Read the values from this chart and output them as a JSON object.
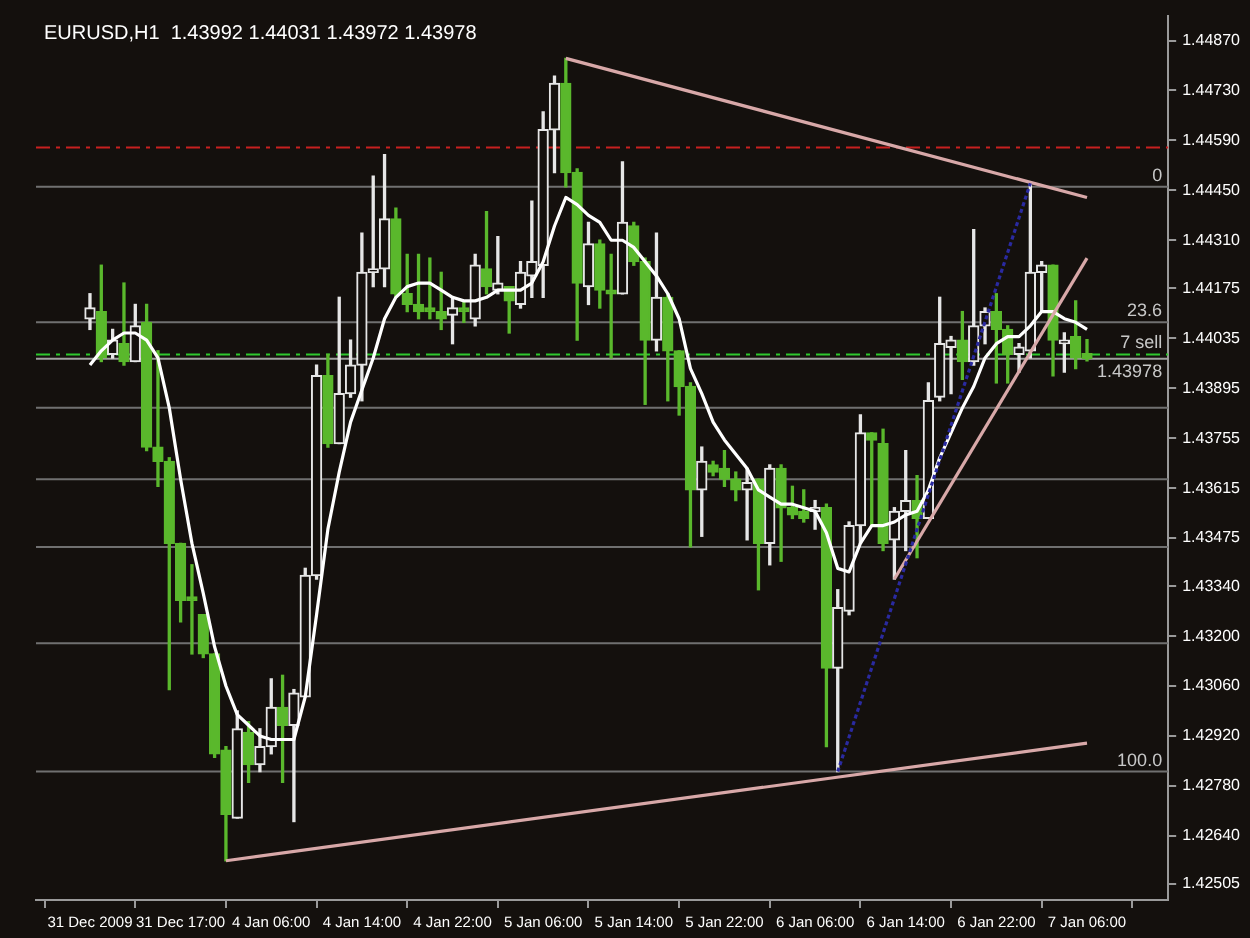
{
  "chart_data": {
    "type": "candlestick",
    "title": "EURUSD,H1  1.43992 1.44031 1.43972 1.43978",
    "categories": [
      "31 Dec 2009",
      null,
      null,
      null,
      null,
      null,
      null,
      null,
      "31 Dec 17:00",
      null,
      null,
      null,
      null,
      null,
      null,
      null,
      "4 Jan 06:00",
      null,
      null,
      null,
      null,
      null,
      null,
      null,
      "4 Jan 14:00",
      null,
      null,
      null,
      null,
      null,
      null,
      null,
      "4 Jan 22:00",
      null,
      null,
      null,
      null,
      null,
      null,
      null,
      "5 Jan 06:00",
      null,
      null,
      null,
      null,
      null,
      null,
      null,
      "5 Jan 14:00",
      null,
      null,
      null,
      null,
      null,
      null,
      null,
      "5 Jan 22:00",
      null,
      null,
      null,
      null,
      null,
      null,
      null,
      "6 Jan 06:00",
      null,
      null,
      null,
      null,
      null,
      null,
      null,
      "6 Jan 14:00",
      null,
      null,
      null,
      null,
      null,
      null,
      null,
      "6 Jan 22:00",
      null,
      null,
      null,
      null,
      null,
      null,
      null,
      "7 Jan 06:00"
    ],
    "ohlc": [
      [
        1.4409,
        1.4416,
        1.4406,
        1.4412
      ],
      [
        1.4411,
        1.4424,
        1.4397,
        1.4398
      ],
      [
        1.4399,
        1.4406,
        1.4398,
        1.4403
      ],
      [
        1.4402,
        1.4419,
        1.4396,
        1.4397
      ],
      [
        1.4397,
        1.4413,
        1.4397,
        1.4407
      ],
      [
        1.4408,
        1.4413,
        1.4372,
        1.4373
      ],
      [
        1.4373,
        1.44,
        1.4362,
        1.4369
      ],
      [
        1.4369,
        1.437,
        1.4305,
        1.4346
      ],
      [
        1.4346,
        1.4346,
        1.4324,
        1.433
      ],
      [
        1.4331,
        1.434,
        1.4315,
        1.433
      ],
      [
        1.4326,
        1.4326,
        1.4314,
        1.4315
      ],
      [
        1.4315,
        1.4315,
        1.4286,
        1.4287
      ],
      [
        1.4288,
        1.4289,
        1.4257,
        1.427
      ],
      [
        1.4269,
        1.4299,
        1.4269,
        1.4294
      ],
      [
        1.4293,
        1.4296,
        1.4279,
        1.4284
      ],
      [
        1.4284,
        1.4294,
        1.4282,
        1.4289
      ],
      [
        1.4289,
        1.4308,
        1.4287,
        1.43
      ],
      [
        1.43,
        1.4309,
        1.4279,
        1.4295
      ],
      [
        1.4295,
        1.4305,
        1.4268,
        1.4304
      ],
      [
        1.4303,
        1.4339,
        1.4303,
        1.4337
      ],
      [
        1.4337,
        1.4396,
        1.4336,
        1.4393
      ],
      [
        1.4393,
        1.4399,
        1.4373,
        1.4374
      ],
      [
        1.4374,
        1.4415,
        1.4374,
        1.4388
      ],
      [
        1.4388,
        1.4403,
        1.4387,
        1.4396
      ],
      [
        1.4396,
        1.4433,
        1.4386,
        1.4422
      ],
      [
        1.4422,
        1.4449,
        1.4418,
        1.4423
      ],
      [
        1.4423,
        1.4455,
        1.4418,
        1.4437
      ],
      [
        1.4437,
        1.444,
        1.4415,
        1.4416
      ],
      [
        1.4416,
        1.4427,
        1.4411,
        1.4413
      ],
      [
        1.4413,
        1.4427,
        1.4409,
        1.4411
      ],
      [
        1.4412,
        1.4426,
        1.4409,
        1.4411
      ],
      [
        1.4411,
        1.4422,
        1.4406,
        1.4409
      ],
      [
        1.441,
        1.4415,
        1.4402,
        1.4412
      ],
      [
        1.4412,
        1.4414,
        1.4408,
        1.4411
      ],
      [
        1.4409,
        1.4427,
        1.4407,
        1.4424
      ],
      [
        1.4423,
        1.4439,
        1.4416,
        1.4418
      ],
      [
        1.4417,
        1.4432,
        1.4416,
        1.4419
      ],
      [
        1.4418,
        1.4418,
        1.4405,
        1.4414
      ],
      [
        1.4413,
        1.4425,
        1.4412,
        1.4422
      ],
      [
        1.4421,
        1.4442,
        1.4415,
        1.4425
      ],
      [
        1.4424,
        1.4467,
        1.4415,
        1.4462
      ],
      [
        1.4462,
        1.4477,
        1.445,
        1.4475
      ],
      [
        1.4475,
        1.4482,
        1.4446,
        1.445
      ],
      [
        1.445,
        1.4451,
        1.4403,
        1.4419
      ],
      [
        1.4418,
        1.4436,
        1.4413,
        1.443
      ],
      [
        1.443,
        1.4431,
        1.4412,
        1.4417
      ],
      [
        1.4417,
        1.4427,
        1.4398,
        1.4416
      ],
      [
        1.4416,
        1.4453,
        1.4416,
        1.4436
      ],
      [
        1.4435,
        1.4436,
        1.4424,
        1.4425
      ],
      [
        1.4425,
        1.4426,
        1.4385,
        1.4403
      ],
      [
        1.4403,
        1.4433,
        1.44,
        1.4415
      ],
      [
        1.4415,
        1.4416,
        1.4386,
        1.44
      ],
      [
        1.44,
        1.44,
        1.4382,
        1.439
      ],
      [
        1.439,
        1.4391,
        1.4345,
        1.4361
      ],
      [
        1.4361,
        1.4373,
        1.4348,
        1.4369
      ],
      [
        1.4368,
        1.4369,
        1.4365,
        1.4366
      ],
      [
        1.4367,
        1.4372,
        1.4362,
        1.4364
      ],
      [
        1.4364,
        1.4366,
        1.4358,
        1.4361
      ],
      [
        1.4361,
        1.4367,
        1.4347,
        1.4363
      ],
      [
        1.4364,
        1.4364,
        1.4333,
        1.4346
      ],
      [
        1.4346,
        1.4368,
        1.434,
        1.4367
      ],
      [
        1.4367,
        1.4368,
        1.4341,
        1.4356
      ],
      [
        1.4356,
        1.4362,
        1.4353,
        1.4354
      ],
      [
        1.4355,
        1.4361,
        1.4352,
        1.4353
      ],
      [
        1.4355,
        1.4358,
        1.435,
        1.4356
      ],
      [
        1.4356,
        1.4357,
        1.4289,
        1.4311
      ],
      [
        1.4311,
        1.4333,
        1.4282,
        1.4328
      ],
      [
        1.4327,
        1.4352,
        1.4326,
        1.4351
      ],
      [
        1.4351,
        1.4382,
        1.4346,
        1.4377
      ],
      [
        1.4377,
        1.4377,
        1.4351,
        1.4375
      ],
      [
        1.4374,
        1.4378,
        1.4344,
        1.4346
      ],
      [
        1.4347,
        1.4356,
        1.4336,
        1.4355
      ],
      [
        1.4355,
        1.4372,
        1.4344,
        1.4358
      ],
      [
        1.4358,
        1.4365,
        1.4342,
        1.4353
      ],
      [
        1.4353,
        1.4391,
        1.4353,
        1.4386
      ],
      [
        1.4387,
        1.4415,
        1.4386,
        1.4402
      ],
      [
        1.4401,
        1.4404,
        1.4388,
        1.4403
      ],
      [
        1.4403,
        1.4411,
        1.4392,
        1.4397
      ],
      [
        1.4397,
        1.4434,
        1.4396,
        1.4407
      ],
      [
        1.4407,
        1.4412,
        1.4402,
        1.4411
      ],
      [
        1.4411,
        1.4416,
        1.4391,
        1.4406
      ],
      [
        1.4406,
        1.4407,
        1.4391,
        1.4399
      ],
      [
        1.4399,
        1.4402,
        1.4394,
        1.4401
      ],
      [
        1.44,
        1.4447,
        1.4398,
        1.4422
      ],
      [
        1.4422,
        1.4425,
        1.4411,
        1.4424
      ],
      [
        1.4424,
        1.4424,
        1.4393,
        1.4403
      ],
      [
        1.4402,
        1.4405,
        1.4394,
        1.4403
      ],
      [
        1.4404,
        1.4414,
        1.4395,
        1.4398
      ],
      [
        1.43992,
        1.44031,
        1.43972,
        1.43978
      ]
    ],
    "colors": [
      "#e6e6e6",
      "#5ab82c",
      "#e6e6e6",
      "#5ab82c",
      "#e6e6e6",
      "#5ab82c",
      "#5ab82c",
      "#5ab82c",
      "#5ab82c",
      "#5ab82c",
      "#5ab82c",
      "#5ab82c",
      "#5ab82c",
      "#e6e6e6",
      "#5ab82c",
      "#e6e6e6",
      "#e6e6e6",
      "#5ab82c",
      "#e6e6e6",
      "#e6e6e6",
      "#e6e6e6",
      "#5ab82c",
      "#e6e6e6",
      "#e6e6e6",
      "#e6e6e6",
      "#e6e6e6",
      "#e6e6e6",
      "#5ab82c",
      "#5ab82c",
      "#5ab82c",
      "#5ab82c",
      "#5ab82c",
      "#e6e6e6",
      "#5ab82c",
      "#e6e6e6",
      "#5ab82c",
      "#e6e6e6",
      "#5ab82c",
      "#e6e6e6",
      "#e6e6e6",
      "#e6e6e6",
      "#e6e6e6",
      "#5ab82c",
      "#5ab82c",
      "#e6e6e6",
      "#5ab82c",
      "#5ab82c",
      "#e6e6e6",
      "#5ab82c",
      "#5ab82c",
      "#e6e6e6",
      "#5ab82c",
      "#5ab82c",
      "#5ab82c",
      "#e6e6e6",
      "#5ab82c",
      "#5ab82c",
      "#5ab82c",
      "#e6e6e6",
      "#5ab82c",
      "#e6e6e6",
      "#5ab82c",
      "#5ab82c",
      "#5ab82c",
      "#e6e6e6",
      "#5ab82c",
      "#e6e6e6",
      "#e6e6e6",
      "#e6e6e6",
      "#5ab82c",
      "#5ab82c",
      "#e6e6e6",
      "#e6e6e6",
      "#5ab82c",
      "#e6e6e6",
      "#e6e6e6",
      "#e6e6e6",
      "#5ab82c",
      "#e6e6e6",
      "#e6e6e6",
      "#5ab82c",
      "#5ab82c",
      "#e6e6e6",
      "#e6e6e6",
      "#e6e6e6",
      "#5ab82c",
      "#e6e6e6",
      "#5ab82c",
      "#5ab82c"
    ],
    "series": [
      {
        "type": "line",
        "color": "#ffffff",
        "values": [
          1.4396,
          1.44,
          1.4403,
          1.4405,
          1.4405,
          1.4403,
          1.4398,
          1.4384,
          1.4364,
          1.4346,
          1.4332,
          1.4317,
          1.4306,
          1.4298,
          1.4295,
          1.4292,
          1.4291,
          1.4291,
          1.4291,
          1.4303,
          1.4326,
          1.435,
          1.4366,
          1.438,
          1.4389,
          1.4398,
          1.4409,
          1.4415,
          1.4418,
          1.4419,
          1.4419,
          1.4417,
          1.4415,
          1.4414,
          1.4414,
          1.4415,
          1.4417,
          1.4417,
          1.4417,
          1.4419,
          1.4425,
          1.4435,
          1.4443,
          1.4441,
          1.4438,
          1.4436,
          1.4431,
          1.4431,
          1.4429,
          1.4425,
          1.4421,
          1.4416,
          1.4409,
          1.4395,
          1.4388,
          1.438,
          1.4375,
          1.4371,
          1.4367,
          1.4361,
          1.4359,
          1.4357,
          1.4357,
          1.4356,
          1.4355,
          1.4349,
          1.4339,
          1.4338,
          1.4346,
          1.4351,
          1.4351,
          1.4352,
          1.4354,
          1.4355,
          1.4361,
          1.437,
          1.4377,
          1.4384,
          1.439,
          1.4398,
          1.4402,
          1.4404,
          1.4404,
          1.4407,
          1.4411,
          1.4411,
          1.4409,
          1.4408,
          1.4406
        ]
      },
      {
        "type": "line",
        "color": "#d8a8a8",
        "values": [
          null,
          null,
          null,
          null,
          null,
          null,
          null,
          null,
          null,
          null,
          null,
          null,
          1.4257,
          null,
          null,
          null,
          null,
          null,
          null,
          null,
          null,
          null,
          null,
          null,
          null,
          null,
          null,
          null,
          null,
          null,
          null,
          null,
          null,
          null,
          null,
          null,
          null,
          null,
          null,
          null,
          null,
          null,
          null,
          null,
          null,
          null,
          null,
          null,
          null,
          null,
          null,
          null,
          null,
          null,
          null,
          null,
          null,
          null,
          null,
          null,
          null,
          null,
          null,
          null,
          null,
          null,
          null,
          null,
          null,
          null,
          null,
          null,
          null,
          null,
          null,
          null,
          null,
          null,
          null,
          null,
          null,
          null,
          null,
          null,
          null,
          null,
          null,
          null,
          1.429
        ]
      },
      {
        "type": "line",
        "color": "#d8a8a8",
        "values": [
          null,
          null,
          null,
          null,
          null,
          null,
          null,
          null,
          null,
          null,
          null,
          null,
          null,
          null,
          null,
          null,
          null,
          null,
          null,
          null,
          null,
          null,
          null,
          null,
          null,
          null,
          null,
          null,
          null,
          null,
          null,
          null,
          null,
          null,
          null,
          null,
          null,
          null,
          null,
          null,
          null,
          null,
          1.4482,
          null,
          null,
          null,
          null,
          null,
          null,
          null,
          null,
          null,
          null,
          null,
          null,
          null,
          null,
          null,
          null,
          null,
          null,
          null,
          null,
          null,
          null,
          null,
          null,
          null,
          null,
          null,
          null,
          null,
          null,
          null,
          null,
          null,
          null,
          null,
          null,
          null,
          null,
          null,
          null,
          null,
          null,
          null,
          null,
          null,
          1.4443
        ]
      },
      {
        "type": "line",
        "color": "#d8a8a8",
        "values": [
          null,
          null,
          null,
          null,
          null,
          null,
          null,
          null,
          null,
          null,
          null,
          null,
          null,
          null,
          null,
          null,
          null,
          null,
          null,
          null,
          null,
          null,
          null,
          null,
          null,
          null,
          null,
          null,
          null,
          null,
          null,
          null,
          null,
          null,
          null,
          null,
          null,
          null,
          null,
          null,
          null,
          null,
          null,
          null,
          null,
          null,
          null,
          null,
          null,
          null,
          null,
          null,
          null,
          null,
          null,
          null,
          null,
          null,
          null,
          null,
          null,
          null,
          null,
          null,
          null,
          null,
          null,
          null,
          null,
          null,
          null,
          1.4336,
          null,
          null,
          null,
          null,
          null,
          null,
          null,
          null,
          null,
          null,
          null,
          null,
          null,
          null,
          null,
          null,
          1.4426
        ]
      },
      {
        "type": "line",
        "color": "#2a2aa0",
        "line_style": "dotted",
        "values": [
          null,
          null,
          null,
          null,
          null,
          null,
          null,
          null,
          null,
          null,
          null,
          null,
          null,
          null,
          null,
          null,
          null,
          null,
          null,
          null,
          null,
          null,
          null,
          null,
          null,
          null,
          null,
          null,
          null,
          null,
          null,
          null,
          null,
          null,
          null,
          null,
          null,
          null,
          null,
          null,
          null,
          null,
          null,
          null,
          null,
          null,
          null,
          null,
          null,
          null,
          null,
          null,
          null,
          null,
          null,
          null,
          null,
          null,
          null,
          null,
          null,
          null,
          null,
          null,
          null,
          null,
          1.4282,
          null,
          null,
          null,
          null,
          null,
          null,
          null,
          null,
          null,
          null,
          null,
          null,
          null,
          null,
          null,
          null,
          1.4447,
          null,
          null,
          null,
          null,
          null
        ]
      }
    ],
    "ref_lines": [
      {
        "axis": "y",
        "value": 1.4457,
        "color": "#c82020",
        "line_style": "dashed"
      },
      {
        "axis": "y",
        "value": 1.4399,
        "label": "7 sell",
        "color": "#2ec82e",
        "line_style": "dashed"
      },
      {
        "axis": "y",
        "value": 1.43978,
        "label": "1.43978",
        "color": "#a0a0a0"
      },
      {
        "axis": "y",
        "value": 1.4446,
        "color": "#707070"
      },
      {
        "axis": "y",
        "value": 1.4408,
        "color": "#707070"
      },
      {
        "axis": "y",
        "value": 1.4384,
        "color": "#707070"
      },
      {
        "axis": "y",
        "value": 1.4364,
        "color": "#707070"
      },
      {
        "axis": "y",
        "value": 1.4345,
        "color": "#707070"
      },
      {
        "axis": "y",
        "value": 1.4318,
        "color": "#707070"
      },
      {
        "axis": "y",
        "value": 1.4282,
        "color": "#707070"
      }
    ],
    "annotations": [
      {
        "text": "0",
        "y": 1.4446
      },
      {
        "text": "23.6",
        "y": 1.4408
      },
      {
        "text": "100.0",
        "y": 1.4282
      }
    ],
    "ylim": [
      1.4246,
      1.4494
    ],
    "yticks": [
      {
        "value": 1.4487,
        "label": "1.44870"
      },
      {
        "value": 1.4473,
        "label": "1.44730"
      },
      {
        "value": 1.4459,
        "label": "1.44590"
      },
      {
        "value": 1.4445,
        "label": "1.44450"
      },
      {
        "value": 1.4431,
        "label": "1.44310"
      },
      1.44175,
      1.44035,
      1.43895,
      1.43755,
      1.43615,
      1.43475,
      {
        "value": 1.4334,
        "label": "1.43340"
      },
      {
        "value": 1.432,
        "label": "1.43200"
      },
      {
        "value": 1.4306,
        "label": "1.43060"
      },
      {
        "value": 1.4292,
        "label": "1.42920"
      },
      {
        "value": 1.4278,
        "label": "1.42780"
      },
      {
        "value": 1.4264,
        "label": "1.42640"
      },
      1.42505
    ],
    "marker": "none",
    "legend": false,
    "grid": false
  }
}
